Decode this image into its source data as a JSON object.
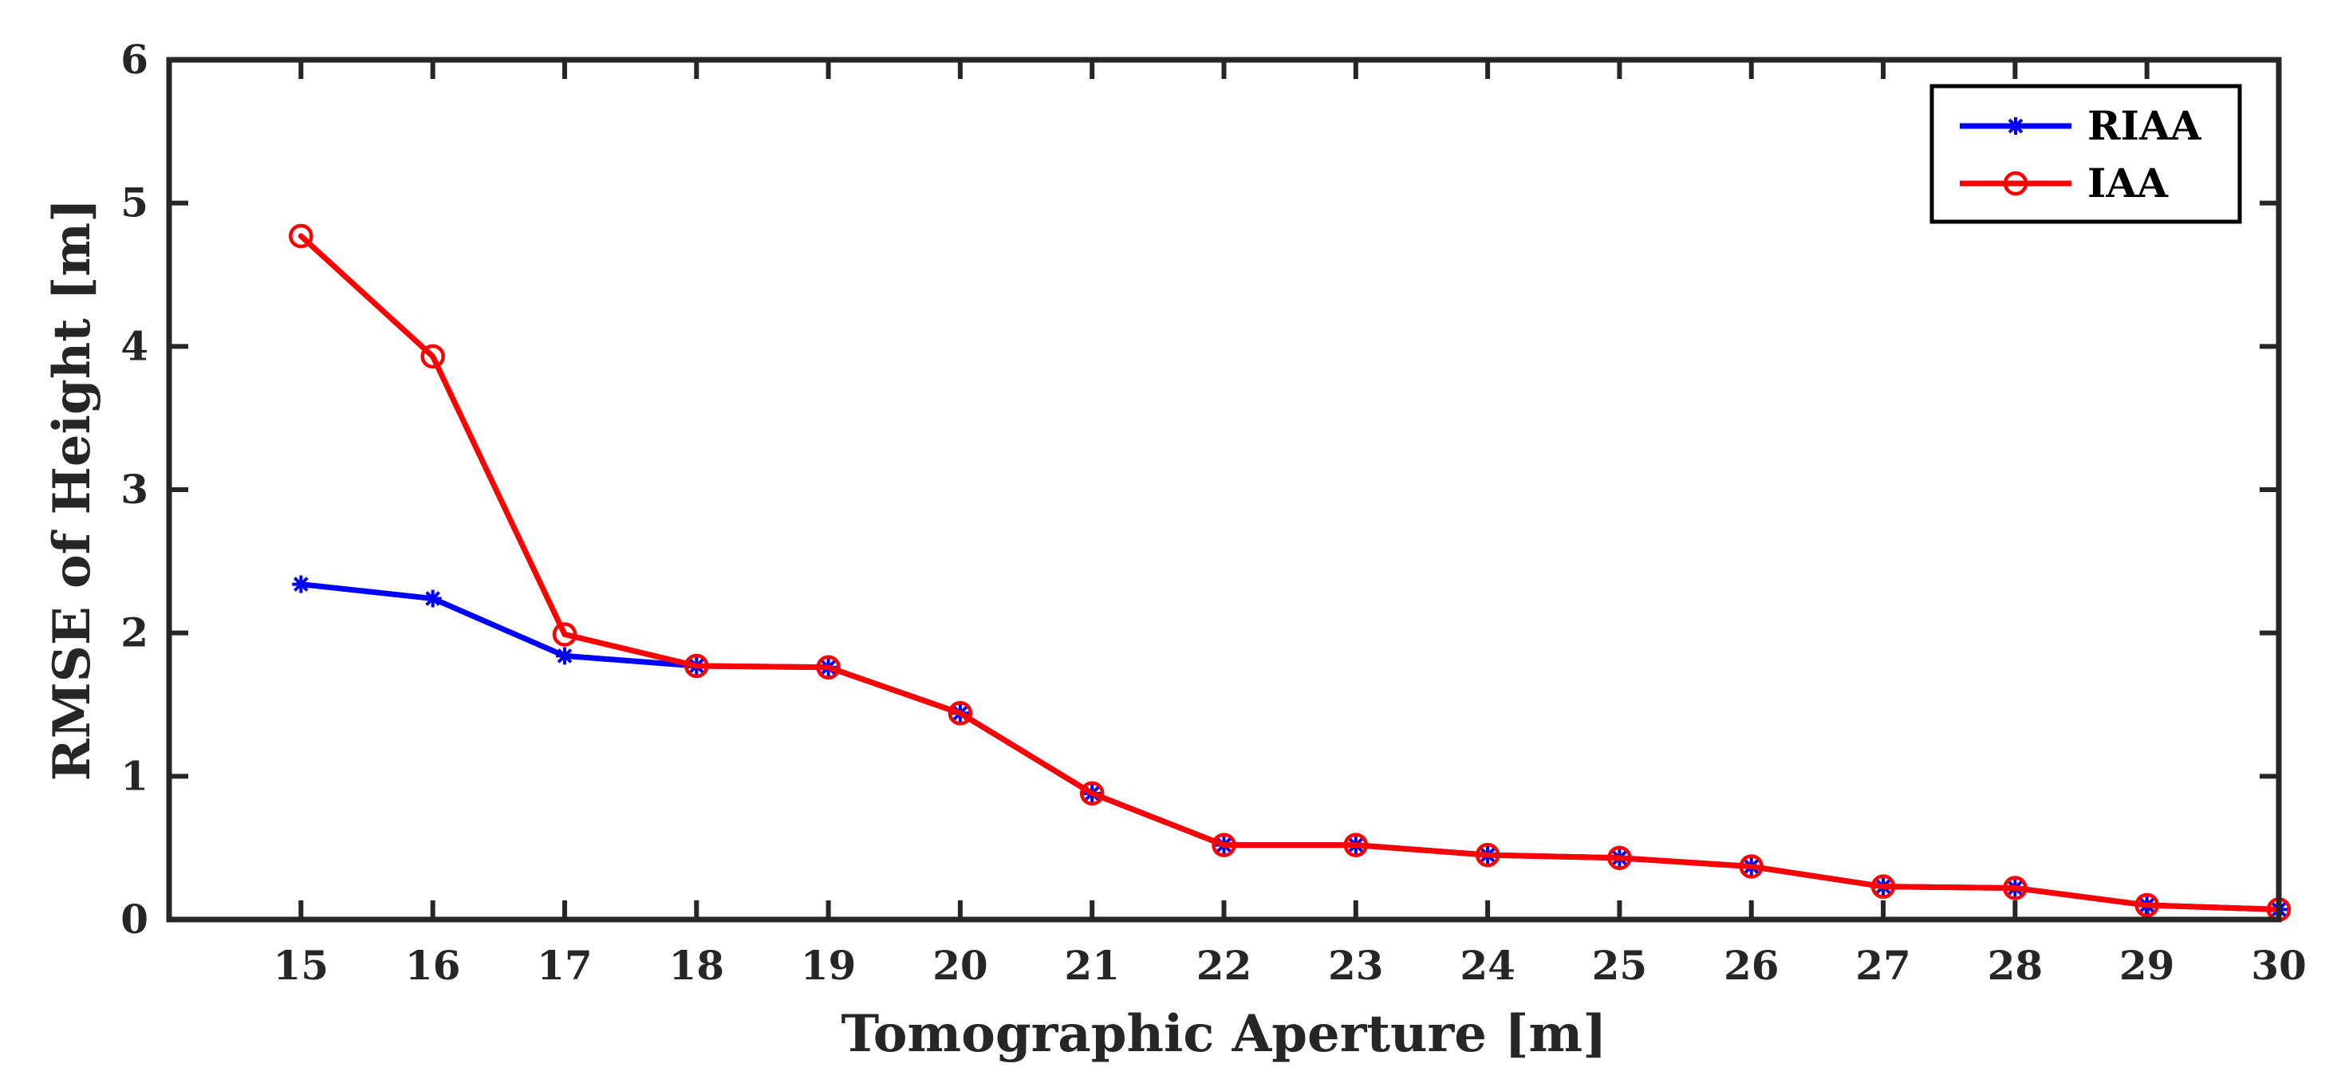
{
  "chart_data": {
    "type": "line",
    "title": "",
    "xlabel": "Tomographic Aperture [m]",
    "ylabel": "RMSE of Height [m]",
    "x": [
      15,
      16,
      17,
      18,
      19,
      20,
      21,
      22,
      23,
      24,
      25,
      26,
      27,
      28,
      29,
      30
    ],
    "xlim": [
      14,
      30
    ],
    "ylim": [
      0,
      6
    ],
    "xticks": [
      "15",
      "16",
      "17",
      "18",
      "19",
      "20",
      "21",
      "22",
      "23",
      "24",
      "25",
      "26",
      "27",
      "28",
      "29",
      "30"
    ],
    "yticks": [
      "0",
      "1",
      "2",
      "3",
      "4",
      "5",
      "6"
    ],
    "grid": false,
    "legend_position": "top-right",
    "series": [
      {
        "name": "RIAA",
        "color": "#0000ff",
        "marker": "asterisk",
        "values": [
          2.34,
          2.24,
          1.84,
          1.77,
          1.76,
          1.44,
          0.88,
          0.52,
          0.52,
          0.45,
          0.43,
          0.37,
          0.23,
          0.22,
          0.1,
          0.07
        ]
      },
      {
        "name": "IAA",
        "color": "#ff0000",
        "marker": "circle",
        "values": [
          4.77,
          3.93,
          1.99,
          1.77,
          1.76,
          1.44,
          0.88,
          0.52,
          0.52,
          0.45,
          0.43,
          0.37,
          0.23,
          0.22,
          0.1,
          0.07
        ]
      }
    ]
  }
}
